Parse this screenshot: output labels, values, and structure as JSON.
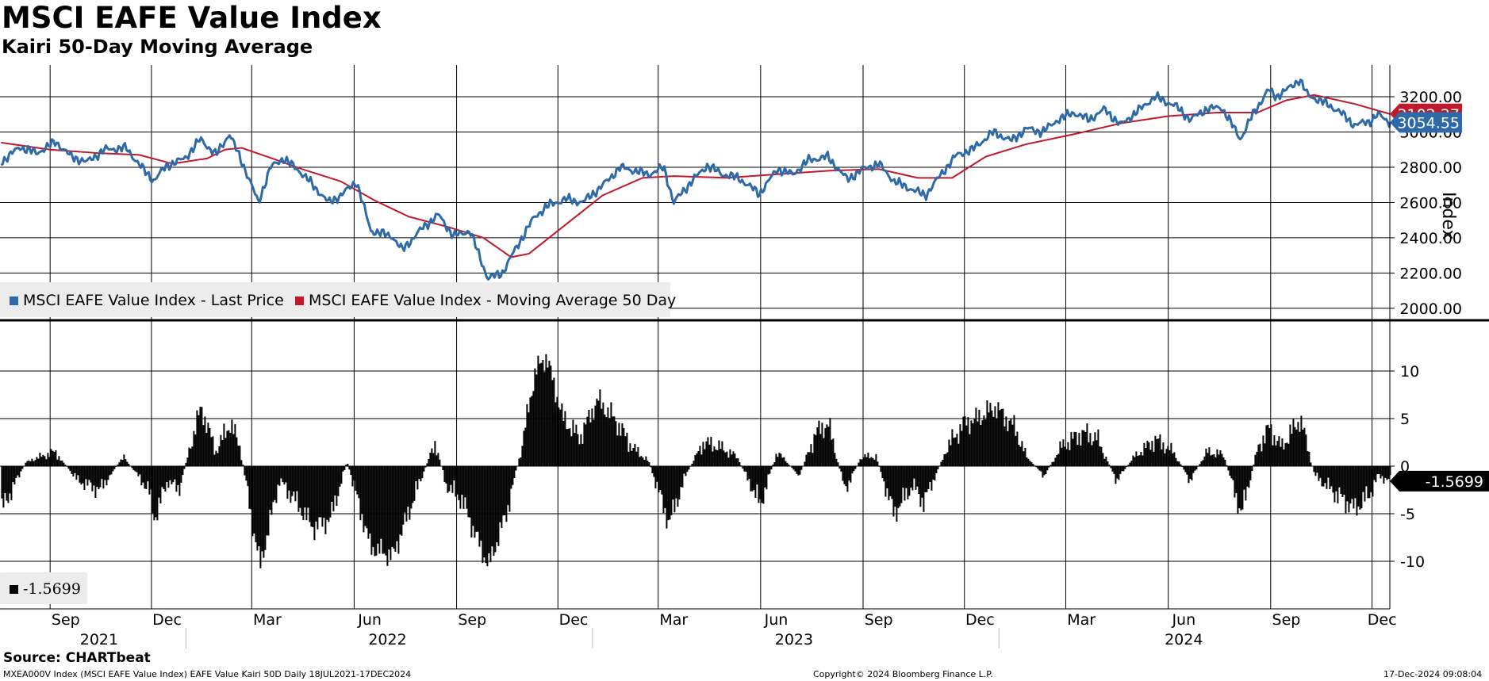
{
  "title": "MSCI EAFE Value Index",
  "subtitle": "Kairi 50-Day Moving Average",
  "legend": {
    "last_price": "MSCI EAFE Value Index - Last Price",
    "moving_average": "MSCI EAFE Value Index - Moving Average 50 Day",
    "kairi_value": "-1.5699"
  },
  "source": "Source: CHARTbeat",
  "footer": {
    "left": "MXEA000V Index (MSCI EAFE Value Index) EAFE Value Kairi 50D  Daily 18JUL2021-17DEC2024",
    "center": "Copyright© 2024 Bloomberg Finance L.P.",
    "right": "17-Dec-2024 09:08:04"
  },
  "colors": {
    "price": "#2f6aa8",
    "moving_average": "#c0192b",
    "kairi": "#000000"
  },
  "chart_data": [
    {
      "type": "line",
      "y_axis_title": "Index",
      "ylim": [
        1950,
        3380
      ],
      "yticks": [
        "2000.00",
        "2200.00",
        "2400.00",
        "2600.00",
        "2800.00",
        "3000.00",
        "3200.00"
      ],
      "last_labels": {
        "last_price": "3054.55",
        "moving_average": "3102.27"
      },
      "x_date_range": [
        "2021-07-18",
        "2024-12-17"
      ],
      "series": [
        {
          "name": "MSCI EAFE Value Index - Last Price",
          "points": [
            [
              "2021-07-19",
              2830
            ],
            [
              "2021-08-05",
              2915
            ],
            [
              "2021-08-20",
              2880
            ],
            [
              "2021-09-06",
              2945
            ],
            [
              "2021-09-20",
              2860
            ],
            [
              "2021-10-04",
              2830
            ],
            [
              "2021-10-20",
              2900
            ],
            [
              "2021-11-08",
              2910
            ],
            [
              "2021-11-26",
              2770
            ],
            [
              "2021-12-03",
              2725
            ],
            [
              "2021-12-15",
              2810
            ],
            [
              "2021-12-31",
              2850
            ],
            [
              "2022-01-14",
              2960
            ],
            [
              "2022-01-28",
              2870
            ],
            [
              "2022-02-09",
              2990
            ],
            [
              "2022-02-23",
              2790
            ],
            [
              "2022-03-07",
              2600
            ],
            [
              "2022-03-18",
              2800
            ],
            [
              "2022-03-29",
              2850
            ],
            [
              "2022-04-11",
              2790
            ],
            [
              "2022-04-22",
              2720
            ],
            [
              "2022-05-09",
              2600
            ],
            [
              "2022-05-20",
              2640
            ],
            [
              "2022-06-03",
              2720
            ],
            [
              "2022-06-16",
              2440
            ],
            [
              "2022-07-05",
              2410
            ],
            [
              "2022-07-14",
              2330
            ],
            [
              "2022-08-02",
              2460
            ],
            [
              "2022-08-16",
              2530
            ],
            [
              "2022-08-29",
              2410
            ],
            [
              "2022-09-13",
              2440
            ],
            [
              "2022-09-29",
              2170
            ],
            [
              "2022-10-12",
              2200
            ],
            [
              "2022-10-26",
              2360
            ],
            [
              "2022-11-10",
              2520
            ],
            [
              "2022-11-24",
              2590
            ],
            [
              "2022-12-09",
              2620
            ],
            [
              "2022-12-23",
              2600
            ],
            [
              "2023-01-09",
              2690
            ],
            [
              "2023-01-26",
              2800
            ],
            [
              "2023-02-08",
              2780
            ],
            [
              "2023-02-21",
              2760
            ],
            [
              "2023-03-06",
              2800
            ],
            [
              "2023-03-15",
              2600
            ],
            [
              "2023-03-31",
              2720
            ],
            [
              "2023-04-14",
              2810
            ],
            [
              "2023-04-28",
              2760
            ],
            [
              "2023-05-12",
              2740
            ],
            [
              "2023-05-31",
              2650
            ],
            [
              "2023-06-16",
              2790
            ],
            [
              "2023-06-30",
              2760
            ],
            [
              "2023-07-14",
              2840
            ],
            [
              "2023-07-31",
              2860
            ],
            [
              "2023-08-18",
              2730
            ],
            [
              "2023-09-01",
              2790
            ],
            [
              "2023-09-15",
              2820
            ],
            [
              "2023-09-29",
              2720
            ],
            [
              "2023-10-13",
              2680
            ],
            [
              "2023-10-27",
              2640
            ],
            [
              "2023-11-10",
              2760
            ],
            [
              "2023-11-24",
              2870
            ],
            [
              "2023-12-08",
              2900
            ],
            [
              "2023-12-27",
              3000
            ],
            [
              "2024-01-12",
              2950
            ],
            [
              "2024-01-26",
              3020
            ],
            [
              "2024-02-09",
              3000
            ],
            [
              "2024-02-23",
              3070
            ],
            [
              "2024-03-08",
              3110
            ],
            [
              "2024-03-22",
              3070
            ],
            [
              "2024-04-05",
              3130
            ],
            [
              "2024-04-19",
              3040
            ],
            [
              "2024-05-03",
              3110
            ],
            [
              "2024-05-20",
              3200
            ],
            [
              "2024-06-07",
              3150
            ],
            [
              "2024-06-21",
              3070
            ],
            [
              "2024-07-05",
              3130
            ],
            [
              "2024-07-19",
              3140
            ],
            [
              "2024-08-05",
              2960
            ],
            [
              "2024-08-16",
              3100
            ],
            [
              "2024-08-30",
              3240
            ],
            [
              "2024-09-06",
              3200
            ],
            [
              "2024-09-20",
              3260
            ],
            [
              "2024-09-27",
              3300
            ],
            [
              "2024-10-04",
              3210
            ],
            [
              "2024-10-18",
              3170
            ],
            [
              "2024-11-01",
              3120
            ],
            [
              "2024-11-15",
              3040
            ],
            [
              "2024-11-29",
              3060
            ],
            [
              "2024-12-06",
              3100
            ],
            [
              "2024-12-17",
              3054.55
            ]
          ]
        },
        {
          "name": "MSCI EAFE Value Index - Moving Average 50 Day",
          "points": [
            [
              "2021-07-19",
              2940
            ],
            [
              "2021-09-01",
              2900
            ],
            [
              "2021-10-15",
              2880
            ],
            [
              "2021-11-20",
              2870
            ],
            [
              "2021-12-20",
              2820
            ],
            [
              "2022-01-20",
              2850
            ],
            [
              "2022-02-05",
              2900
            ],
            [
              "2022-02-20",
              2910
            ],
            [
              "2022-03-15",
              2860
            ],
            [
              "2022-04-15",
              2790
            ],
            [
              "2022-05-20",
              2720
            ],
            [
              "2022-06-20",
              2610
            ],
            [
              "2022-07-20",
              2520
            ],
            [
              "2022-08-25",
              2460
            ],
            [
              "2022-09-25",
              2400
            ],
            [
              "2022-10-20",
              2290
            ],
            [
              "2022-11-05",
              2310
            ],
            [
              "2022-12-01",
              2440
            ],
            [
              "2023-01-10",
              2640
            ],
            [
              "2023-02-15",
              2740
            ],
            [
              "2023-03-15",
              2750
            ],
            [
              "2023-05-01",
              2740
            ],
            [
              "2023-06-15",
              2760
            ],
            [
              "2023-08-01",
              2780
            ],
            [
              "2023-09-15",
              2790
            ],
            [
              "2023-10-20",
              2740
            ],
            [
              "2023-11-20",
              2740
            ],
            [
              "2023-12-20",
              2860
            ],
            [
              "2024-01-25",
              2930
            ],
            [
              "2024-03-10",
              2990
            ],
            [
              "2024-04-20",
              3050
            ],
            [
              "2024-06-01",
              3090
            ],
            [
              "2024-07-15",
              3110
            ],
            [
              "2024-08-20",
              3110
            ],
            [
              "2024-09-15",
              3180
            ],
            [
              "2024-10-10",
              3210
            ],
            [
              "2024-11-15",
              3160
            ],
            [
              "2024-12-17",
              3102.27
            ]
          ]
        }
      ]
    },
    {
      "type": "bar",
      "ylim": [
        -15,
        15
      ],
      "yticks": [
        "10",
        "5",
        "0",
        "-5",
        "-10"
      ],
      "last_label": "-1.5699",
      "x_ticks": {
        "months": [
          "Sep",
          "Dec",
          "Mar",
          "Jun",
          "Sep",
          "Dec",
          "Mar",
          "Jun",
          "Sep",
          "Dec",
          "Mar",
          "Jun",
          "Sep",
          "Dec"
        ],
        "years": [
          "2021",
          "2022",
          "2023",
          "2024"
        ]
      },
      "series": [
        {
          "name": "-1.5699",
          "points": [
            [
              "2021-07-19",
              -4.5
            ],
            [
              "2021-08-10",
              0.5
            ],
            [
              "2021-09-05",
              1.5
            ],
            [
              "2021-09-25",
              -1.5
            ],
            [
              "2021-10-15",
              -2.5
            ],
            [
              "2021-11-05",
              1
            ],
            [
              "2021-11-28",
              -2.5
            ],
            [
              "2021-12-03",
              -5.5
            ],
            [
              "2021-12-15",
              -1.5
            ],
            [
              "2021-12-25",
              -2.5
            ],
            [
              "2022-01-05",
              2.5
            ],
            [
              "2022-01-14",
              6.2
            ],
            [
              "2022-01-27",
              1.5
            ],
            [
              "2022-02-09",
              4.5
            ],
            [
              "2022-02-18",
              2
            ],
            [
              "2022-03-01",
              -6
            ],
            [
              "2022-03-08",
              -10.5
            ],
            [
              "2022-03-25",
              -1.5
            ],
            [
              "2022-04-05",
              -3
            ],
            [
              "2022-04-25",
              -6.5
            ],
            [
              "2022-05-10",
              -5.5
            ],
            [
              "2022-05-25",
              0.5
            ],
            [
              "2022-06-15",
              -8.5
            ],
            [
              "2022-07-05",
              -9.5
            ],
            [
              "2022-07-25",
              -3
            ],
            [
              "2022-08-12",
              2.5
            ],
            [
              "2022-08-22",
              -2
            ],
            [
              "2022-09-05",
              -3.5
            ],
            [
              "2022-09-20",
              -8
            ],
            [
              "2022-09-29",
              -10.5
            ],
            [
              "2022-10-15",
              -5
            ],
            [
              "2022-10-28",
              1.5
            ],
            [
              "2022-11-10",
              10
            ],
            [
              "2022-11-20",
              11.5
            ],
            [
              "2022-12-05",
              5
            ],
            [
              "2022-12-20",
              3
            ],
            [
              "2023-01-05",
              7
            ],
            [
              "2023-01-20",
              5
            ],
            [
              "2023-02-05",
              2
            ],
            [
              "2023-02-20",
              0.5
            ],
            [
              "2023-03-10",
              -6
            ],
            [
              "2023-03-25",
              -1
            ],
            [
              "2023-04-10",
              2.5
            ],
            [
              "2023-04-25",
              2
            ],
            [
              "2023-05-10",
              1
            ],
            [
              "2023-05-31",
              -4
            ],
            [
              "2023-06-15",
              1.5
            ],
            [
              "2023-07-05",
              -1
            ],
            [
              "2023-07-20",
              3.5
            ],
            [
              "2023-07-31",
              4.5
            ],
            [
              "2023-08-15",
              -2.5
            ],
            [
              "2023-08-30",
              1
            ],
            [
              "2023-09-12",
              1
            ],
            [
              "2023-09-28",
              -5
            ],
            [
              "2023-10-15",
              -2
            ],
            [
              "2023-10-25",
              -3.8
            ],
            [
              "2023-11-15",
              2
            ],
            [
              "2023-11-30",
              4.5
            ],
            [
              "2023-12-12",
              5
            ],
            [
              "2023-12-28",
              6.2
            ],
            [
              "2024-01-15",
              4
            ],
            [
              "2024-01-25",
              1
            ],
            [
              "2024-02-10",
              -1
            ],
            [
              "2024-02-25",
              2
            ],
            [
              "2024-03-15",
              3.5
            ],
            [
              "2024-03-28",
              3
            ],
            [
              "2024-04-15",
              -1.5
            ],
            [
              "2024-05-01",
              1
            ],
            [
              "2024-05-20",
              2.8
            ],
            [
              "2024-06-05",
              1.5
            ],
            [
              "2024-06-20",
              -1.5
            ],
            [
              "2024-07-05",
              1.5
            ],
            [
              "2024-07-20",
              1.2
            ],
            [
              "2024-08-05",
              -5
            ],
            [
              "2024-08-20",
              2
            ],
            [
              "2024-08-30",
              4
            ],
            [
              "2024-09-10",
              2
            ],
            [
              "2024-09-27",
              5
            ],
            [
              "2024-10-10",
              -1
            ],
            [
              "2024-10-30",
              -3
            ],
            [
              "2024-11-15",
              -4.5
            ],
            [
              "2024-11-28",
              -3
            ],
            [
              "2024-12-06",
              -1
            ],
            [
              "2024-12-17",
              -1.5699
            ]
          ]
        }
      ]
    }
  ]
}
